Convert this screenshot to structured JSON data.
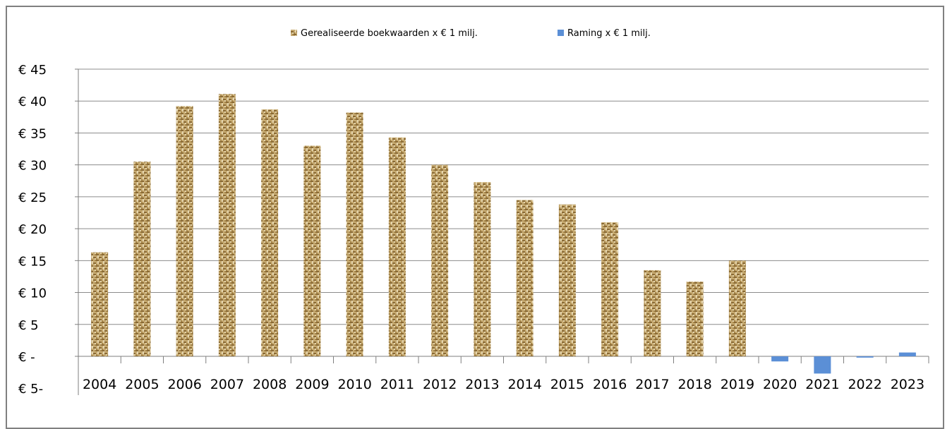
{
  "chart_data": {
    "type": "bar",
    "categories": [
      "2004",
      "2005",
      "2006",
      "2007",
      "2008",
      "2009",
      "2010",
      "2011",
      "2012",
      "2013",
      "2014",
      "2015",
      "2016",
      "2017",
      "2018",
      "2019",
      "2020",
      "2021",
      "2022",
      "2023"
    ],
    "series": [
      {
        "name": "Gerealiseerde boekwaarden x € 1 milj.",
        "color": "#b89a5c",
        "pattern": "woven",
        "values": [
          16.3,
          30.5,
          39.2,
          41.1,
          38.7,
          33.0,
          38.2,
          34.3,
          30.0,
          27.3,
          24.5,
          23.8,
          21.0,
          13.5,
          11.7,
          15.0,
          null,
          null,
          null,
          null
        ]
      },
      {
        "name": "Raming x € 1 milj.",
        "color": "#5b8fd6",
        "values": [
          null,
          null,
          null,
          null,
          null,
          null,
          null,
          null,
          null,
          null,
          null,
          null,
          null,
          null,
          null,
          null,
          -0.8,
          -2.7,
          -0.2,
          0.6
        ]
      }
    ],
    "y_ticks": [
      "€ 45",
      "€ 40",
      "€ 35",
      "€ 30",
      "€ 25",
      "€ 20",
      "€ 15",
      "€ 10",
      "€ 5",
      "€ -",
      "€ 5-"
    ],
    "ylim": [
      -5,
      45
    ],
    "grid": true,
    "legend_position": "top"
  }
}
